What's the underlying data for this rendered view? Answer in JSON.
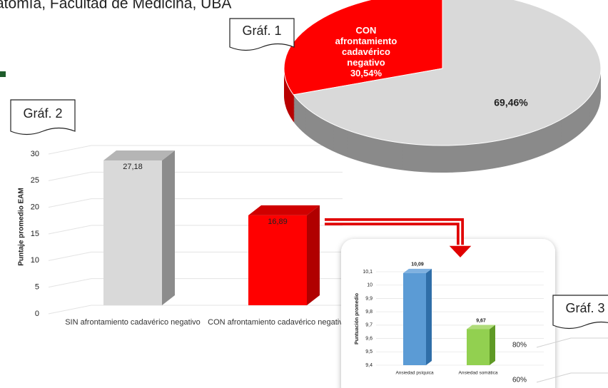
{
  "header": {
    "text": "atomía, Facultad de Medicina, UBA"
  },
  "chart_data": [
    {
      "type": "pie",
      "label": "Gráf. 1",
      "categories": [
        "CON afrontamiento cadavérico negativo",
        null
      ],
      "values": [
        30.54,
        69.46
      ],
      "value_labels": [
        "30,54%",
        "69,46%"
      ],
      "colors": [
        "#ff0000",
        "#d9d9d9"
      ]
    },
    {
      "type": "bar3d",
      "label": "Gráf. 2",
      "ylabel": "Puntaje promedio EAM",
      "categories": [
        "SIN afrontamiento cadavérico negativo",
        "CON afrontamiento cadavérico negativo"
      ],
      "values": [
        27.18,
        16.89
      ],
      "value_labels": [
        "27,18",
        "16,89"
      ],
      "colors": [
        "#d9d9d9",
        "#ff0000"
      ],
      "ylim": [
        0,
        30
      ],
      "yticks": [
        0,
        5,
        10,
        15,
        20,
        25,
        30
      ],
      "grid": true
    },
    {
      "type": "bar3d",
      "ylabel": "Puntuación promedio",
      "categories": [
        "Ansiedad psíquica",
        "Ansiedad somática"
      ],
      "values": [
        10.09,
        9.67
      ],
      "value_labels": [
        "10,09",
        "9,67"
      ],
      "colors": [
        "#5b9bd5",
        "#92d050"
      ],
      "ylim": [
        9.4,
        10.1
      ],
      "yticks": [
        {
          "value": 9.4,
          "label": "9,4"
        },
        {
          "value": 9.5,
          "label": "9,5"
        },
        {
          "value": 9.6,
          "label": "9,6"
        },
        {
          "value": 9.7,
          "label": "9,7"
        },
        {
          "value": 9.8,
          "label": "9,8"
        },
        {
          "value": 9.9,
          "label": "9,9"
        },
        {
          "value": 10,
          "label": "10"
        },
        {
          "value": 10.1,
          "label": "10,1"
        }
      ],
      "grid": true
    },
    {
      "type": "bar",
      "label": "Gráf. 3",
      "ylim": [
        60,
        80
      ],
      "yticks": [
        {
          "value": 80,
          "label": "80%"
        },
        {
          "value": 60,
          "label": "60%"
        }
      ],
      "grid": true
    }
  ]
}
